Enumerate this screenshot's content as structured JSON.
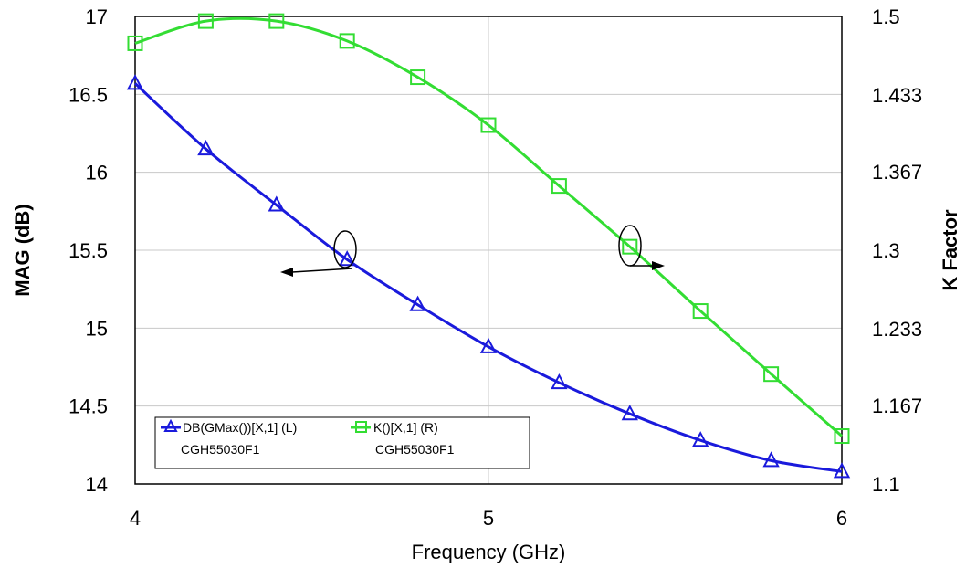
{
  "chart_data": {
    "type": "line",
    "xlabel": "Frequency (GHz)",
    "ylabel_left": "MAG (dB)",
    "ylabel_right": "K Factor",
    "xlim": [
      4,
      6
    ],
    "ylim_left": [
      14,
      17
    ],
    "ylim_right": [
      1.1,
      1.5
    ],
    "x_ticks": [
      "4",
      "5",
      "6"
    ],
    "y_ticks_left": [
      "14",
      "14.5",
      "15",
      "15.5",
      "16",
      "16.5",
      "17"
    ],
    "y_ticks_right": [
      "1.1",
      "1.167",
      "1.233",
      "1.3",
      "1.367",
      "1.433",
      "1.5"
    ],
    "grid": true,
    "legend_position": "bottom-left",
    "series": [
      {
        "name": "DB(GMax())[X,1] (L)",
        "subtitle": "CGH55030F1",
        "axis": "left",
        "color": "#1a1adc",
        "marker": "triangle",
        "x": [
          4.0,
          4.2,
          4.4,
          4.6,
          4.8,
          5.0,
          5.2,
          5.4,
          5.6,
          5.8,
          6.0
        ],
        "y": [
          16.57,
          16.15,
          15.79,
          15.44,
          15.15,
          14.88,
          14.65,
          14.45,
          14.28,
          14.15,
          14.08
        ]
      },
      {
        "name": "K()[X,1] (R)",
        "subtitle": "CGH55030F1",
        "axis": "right",
        "color": "#33dd33",
        "marker": "square",
        "x": [
          4.0,
          4.2,
          4.4,
          4.6,
          4.8,
          5.0,
          5.2,
          5.4,
          5.6,
          5.8,
          6.0
        ],
        "y": [
          1.477,
          1.496,
          1.496,
          1.479,
          1.448,
          1.407,
          1.355,
          1.303,
          1.248,
          1.194,
          1.141
        ]
      }
    ]
  }
}
